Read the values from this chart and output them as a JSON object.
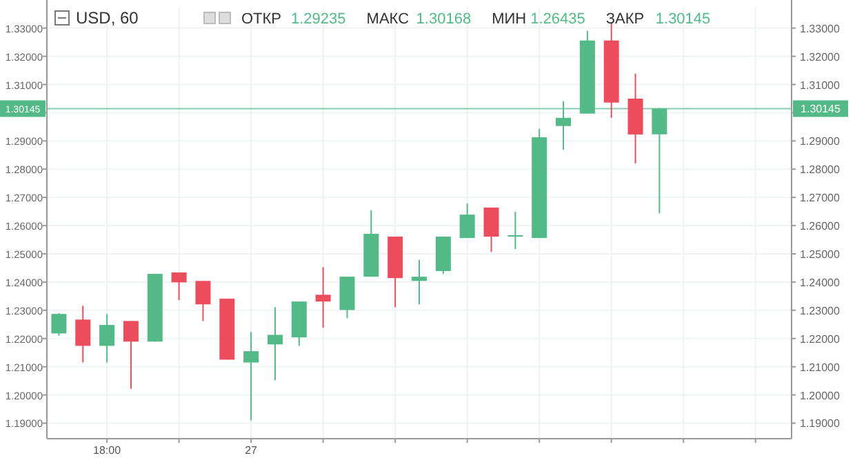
{
  "chart_data": {
    "type": "candlestick",
    "title": "USD, 60",
    "annotations": [
      "ОТКР",
      "1.29235",
      "МАКС",
      "1.30168",
      "МИН",
      "1.26435",
      "ЗАКР",
      "1.30145"
    ],
    "categories": [
      null,
      null,
      "18:00",
      null,
      null,
      null,
      null,
      null,
      "27",
      null,
      null,
      null,
      null,
      null,
      null,
      null,
      null,
      null,
      null,
      null,
      null,
      null,
      null,
      null,
      null,
      null,
      null,
      null,
      null,
      null,
      null
    ],
    "ohlc": [
      [
        1.2218,
        1.229,
        1.221,
        1.2287
      ],
      [
        1.2267,
        1.2316,
        1.2115,
        1.2174
      ],
      [
        1.2174,
        1.2287,
        1.2115,
        1.2248
      ],
      [
        1.2262,
        1.2262,
        1.2022,
        1.2189
      ],
      [
        1.2189,
        1.2429,
        1.2189,
        1.2429
      ],
      [
        1.2434,
        1.2434,
        1.2336,
        1.2399
      ],
      [
        1.2404,
        1.2404,
        1.2262,
        1.2321
      ],
      [
        1.2341,
        1.2341,
        1.2125,
        1.2125
      ],
      [
        1.2115,
        1.2223,
        1.191,
        1.2155
      ],
      [
        1.2179,
        1.2311,
        1.2052,
        1.2213
      ],
      [
        1.2204,
        1.2331,
        1.2174,
        1.2331
      ],
      [
        1.2355,
        1.2453,
        1.2238,
        1.2331
      ],
      [
        1.2301,
        1.2419,
        1.2272,
        1.2419
      ],
      [
        1.2419,
        1.2654,
        1.2419,
        1.2571
      ],
      [
        1.2561,
        1.2561,
        1.2311,
        1.2414
      ],
      [
        1.2404,
        1.2478,
        1.2321,
        1.2419
      ],
      [
        1.2439,
        1.2561,
        1.2429,
        1.2561
      ],
      [
        1.2556,
        1.2678,
        1.2556,
        1.2639
      ],
      [
        1.2664,
        1.2664,
        1.2507,
        1.2561
      ],
      [
        1.2561,
        1.2649,
        1.2517,
        1.2566
      ],
      [
        1.2556,
        1.2943,
        1.2556,
        1.2913
      ],
      [
        1.2953,
        1.3041,
        1.2869,
        1.2982
      ],
      [
        1.2997,
        1.329,
        1.2997,
        1.3256
      ],
      [
        1.3256,
        1.332,
        1.2982,
        1.3036
      ],
      [
        1.305,
        1.3138,
        1.282,
        1.2923
      ],
      [
        1.29235,
        1.30168,
        1.26435,
        1.30145
      ],
      null,
      null,
      null,
      null,
      null
    ],
    "colors": [
      "#53b987",
      "#eb4d5c",
      "#53b987",
      "#eb4d5c",
      "#53b987",
      "#eb4d5c",
      "#eb4d5c",
      "#eb4d5c",
      "#53b987",
      "#53b987",
      "#53b987",
      "#eb4d5c",
      "#53b987",
      "#53b987",
      "#eb4d5c",
      "#53b987",
      "#53b987",
      "#53b987",
      "#eb4d5c",
      "#53b987",
      "#53b987",
      "#53b987",
      "#53b987",
      "#eb4d5c",
      "#eb4d5c",
      "#53b987",
      null,
      null,
      null,
      null,
      null
    ],
    "ylim": [
      1.1845,
      1.3375
    ],
    "yticks": [
      {
        "value": 1.19,
        "label": "1.19000"
      },
      {
        "value": 1.2,
        "label": "1.20000"
      },
      {
        "value": 1.21,
        "label": "1.21000"
      },
      {
        "value": 1.22,
        "label": "1.22000"
      },
      {
        "value": 1.23,
        "label": "1.23000"
      },
      {
        "value": 1.24,
        "label": "1.24000"
      },
      {
        "value": 1.25,
        "label": "1.25000"
      },
      {
        "value": 1.26,
        "label": "1.26000"
      },
      {
        "value": 1.27,
        "label": "1.27000"
      },
      {
        "value": 1.28,
        "label": "1.28000"
      },
      {
        "value": 1.29,
        "label": "1.29000"
      },
      {
        "value": 1.3,
        "label": null
      },
      {
        "value": 1.31,
        "label": "1.31000"
      },
      {
        "value": 1.32,
        "label": "1.32000"
      },
      {
        "value": 1.33,
        "label": "1.33000"
      }
    ],
    "ref_lines": [
      {
        "axis": "y",
        "value": 1.30145,
        "label": "1.30145",
        "color": "#53b987"
      }
    ],
    "grid": true
  }
}
